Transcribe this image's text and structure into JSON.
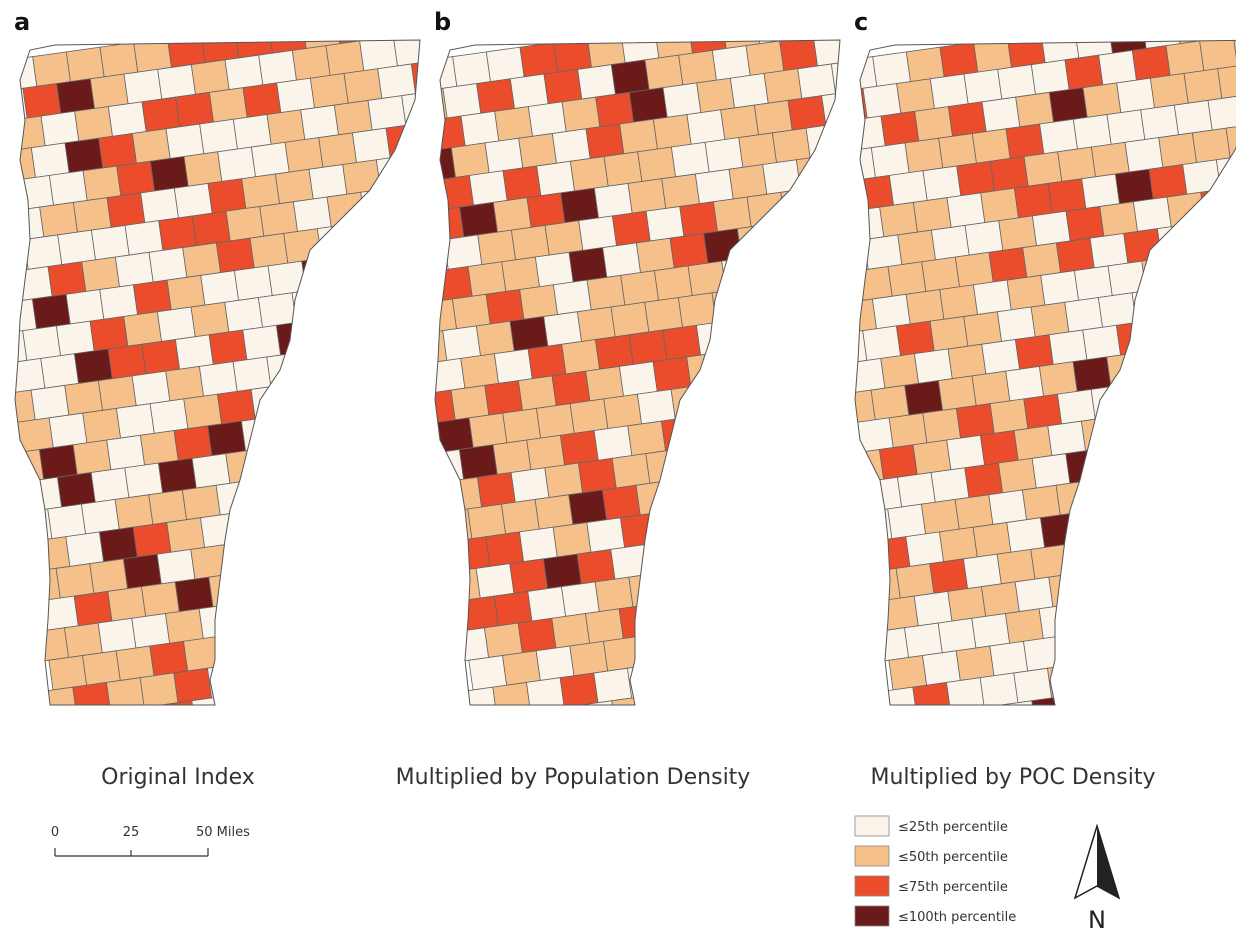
{
  "panels": [
    {
      "label": "a",
      "title": "Original Index"
    },
    {
      "label": "b",
      "title": "Multiplied by Population Density"
    },
    {
      "label": "c",
      "title": "Multiplied by POC Density"
    }
  ],
  "scale_bar": {
    "labels": [
      "0",
      "25",
      "50 Miles"
    ]
  },
  "legend": [
    {
      "label": "≤25th percentile",
      "color": "#fbf4ea"
    },
    {
      "label": "≤50th percentile",
      "color": "#f6c08a"
    },
    {
      "label": "≤75th percentile",
      "color": "#eb4d2c"
    },
    {
      "label": "≤100th percentile",
      "color": "#6b1a1a"
    }
  ],
  "north": "N"
}
